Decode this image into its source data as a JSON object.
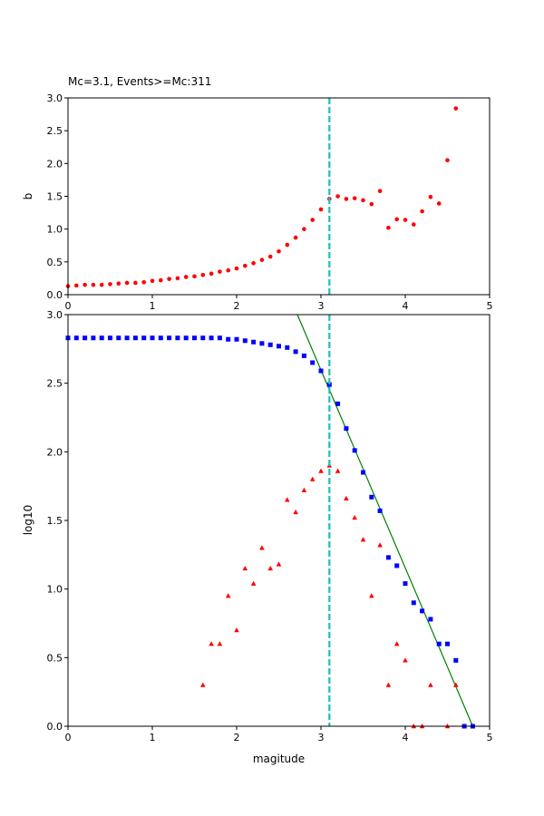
{
  "chart_data": [
    {
      "type": "scatter",
      "title": "Mc=3.1, Events>=Mc:311",
      "xlabel": "",
      "ylabel": "b",
      "xlim": [
        0,
        5
      ],
      "ylim": [
        0,
        3
      ],
      "xticks": [
        "0",
        "1",
        "2",
        "3",
        "4",
        "5"
      ],
      "yticks": [
        "0.0",
        "0.5",
        "1.0",
        "1.5",
        "2.0",
        "2.5",
        "3.0"
      ],
      "grid": false,
      "series": [
        {
          "color": "#ff0000",
          "marker": "circle",
          "x": [
            0.0,
            0.1,
            0.2,
            0.3,
            0.4,
            0.5,
            0.6,
            0.7,
            0.8,
            0.9,
            1.0,
            1.1,
            1.2,
            1.3,
            1.4,
            1.5,
            1.6,
            1.7,
            1.8,
            1.9,
            2.0,
            2.1,
            2.2,
            2.3,
            2.4,
            2.5,
            2.6,
            2.7,
            2.8,
            2.9,
            3.0,
            3.1,
            3.2,
            3.3,
            3.4,
            3.5,
            3.6,
            3.7,
            3.8,
            3.9,
            4.0,
            4.1,
            4.2,
            4.3,
            4.4,
            4.5,
            4.6
          ],
          "y": [
            0.13,
            0.14,
            0.15,
            0.15,
            0.15,
            0.16,
            0.17,
            0.18,
            0.18,
            0.19,
            0.21,
            0.22,
            0.24,
            0.25,
            0.27,
            0.28,
            0.3,
            0.32,
            0.35,
            0.37,
            0.4,
            0.44,
            0.48,
            0.53,
            0.58,
            0.66,
            0.76,
            0.87,
            1.0,
            1.14,
            1.3,
            1.46,
            1.5,
            1.46,
            1.47,
            1.44,
            1.38,
            1.58,
            1.02,
            1.15,
            1.14,
            1.07,
            1.27,
            1.49,
            1.39,
            2.05,
            2.84
          ]
        }
      ],
      "vlines": [
        {
          "x": 3.1,
          "color": "#17bfbf",
          "style": "dashed"
        }
      ]
    },
    {
      "type": "scatter",
      "title": "",
      "xlabel": "magitude",
      "ylabel": "log10",
      "xlim": [
        0,
        5
      ],
      "ylim": [
        0,
        3
      ],
      "xticks": [
        "0",
        "1",
        "2",
        "3",
        "4",
        "5"
      ],
      "yticks": [
        "0.0",
        "0.5",
        "1.0",
        "1.5",
        "2.0",
        "2.5",
        "3.0"
      ],
      "grid": false,
      "series": [
        {
          "color": "#0000ff",
          "marker": "square",
          "x": [
            0.0,
            0.1,
            0.2,
            0.3,
            0.4,
            0.5,
            0.6,
            0.7,
            0.8,
            0.9,
            1.0,
            1.1,
            1.2,
            1.3,
            1.4,
            1.5,
            1.6,
            1.7,
            1.8,
            1.9,
            2.0,
            2.1,
            2.2,
            2.3,
            2.4,
            2.5,
            2.6,
            2.7,
            2.8,
            2.9,
            3.0,
            3.1,
            3.2,
            3.3,
            3.4,
            3.5,
            3.6,
            3.7,
            3.8,
            3.9,
            4.0,
            4.1,
            4.2,
            4.3,
            4.4,
            4.5,
            4.6,
            4.7,
            4.8
          ],
          "y": [
            2.83,
            2.83,
            2.83,
            2.83,
            2.83,
            2.83,
            2.83,
            2.83,
            2.83,
            2.83,
            2.83,
            2.83,
            2.83,
            2.83,
            2.83,
            2.83,
            2.83,
            2.83,
            2.83,
            2.82,
            2.82,
            2.81,
            2.8,
            2.79,
            2.78,
            2.77,
            2.76,
            2.73,
            2.7,
            2.65,
            2.59,
            2.49,
            2.35,
            2.17,
            2.01,
            1.85,
            1.67,
            1.57,
            1.23,
            1.17,
            1.04,
            0.9,
            0.84,
            0.78,
            0.6,
            0.6,
            0.48,
            0.0,
            0.0
          ]
        },
        {
          "color": "#ff0000",
          "marker": "triangle",
          "x": [
            1.6,
            1.7,
            1.8,
            1.9,
            2.0,
            2.1,
            2.2,
            2.3,
            2.4,
            2.5,
            2.6,
            2.7,
            2.8,
            2.9,
            3.0,
            3.1,
            3.2,
            3.3,
            3.4,
            3.5,
            3.6,
            3.7,
            3.8,
            3.9,
            4.0,
            4.1,
            4.2,
            4.3,
            4.5,
            4.6
          ],
          "y": [
            0.3,
            0.6,
            0.6,
            0.95,
            0.7,
            1.15,
            1.04,
            1.3,
            1.15,
            1.18,
            1.65,
            1.56,
            1.72,
            1.8,
            1.86,
            1.9,
            1.86,
            1.66,
            1.52,
            1.36,
            0.95,
            1.32,
            0.3,
            0.6,
            0.48,
            0.0,
            0.0,
            0.3,
            0.0,
            0.3
          ]
        }
      ],
      "fit_line": {
        "x": [
          2.72,
          4.8
        ],
        "y": [
          3.0,
          0.0
        ],
        "color": "#008000"
      },
      "vlines": [
        {
          "x": 3.1,
          "color": "#17bfbf",
          "style": "dashed"
        }
      ]
    }
  ]
}
